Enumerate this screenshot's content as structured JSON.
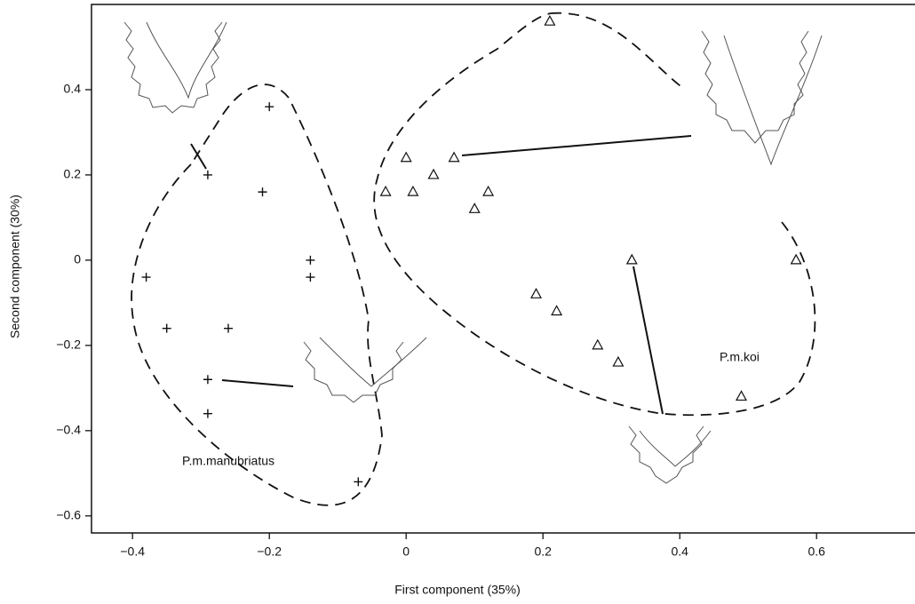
{
  "chart_data": {
    "type": "scatter",
    "x_label": "First component (35%)",
    "y_label": "Second component (30%)",
    "xlim": [
      -0.46,
      0.74
    ],
    "ylim": [
      -0.64,
      0.6
    ],
    "xticks": [
      {
        "value": -0.4,
        "label": "−0.4"
      },
      {
        "value": -0.2,
        "label": "−0.2"
      },
      0,
      0.2,
      0.4,
      0.6
    ],
    "yticks": [
      {
        "value": -0.6,
        "label": "−0.6"
      },
      {
        "value": -0.4,
        "label": "−0.4"
      },
      {
        "value": -0.2,
        "label": "−0.2"
      },
      0,
      0.2,
      0.4
    ],
    "series": [
      {
        "marker": "plus",
        "color": "#111",
        "x": [
          -0.29,
          -0.2,
          -0.21,
          -0.14,
          -0.14,
          -0.38,
          -0.35,
          -0.26,
          -0.29,
          -0.29,
          -0.07
        ],
        "values": [
          0.2,
          0.36,
          0.16,
          0,
          -0.04,
          -0.04,
          -0.16,
          -0.16,
          -0.28,
          -0.36,
          -0.52
        ]
      },
      {
        "marker": "triangle",
        "color": "#111",
        "x": [
          0.21,
          -0.03,
          0.0,
          0.01,
          0.04,
          0.07,
          0.1,
          0.12,
          0.19,
          0.22,
          0.28,
          0.31,
          0.33,
          0.49,
          0.57
        ],
        "values": [
          0.56,
          0.16,
          0.24,
          0.16,
          0.2,
          0.24,
          0.12,
          0.16,
          -0.08,
          -0.12,
          -0.2,
          -0.24,
          0,
          -0.32,
          0
        ]
      }
    ],
    "annotations": [
      "P.m.manubriatus",
      "P.m.koi"
    ]
  }
}
